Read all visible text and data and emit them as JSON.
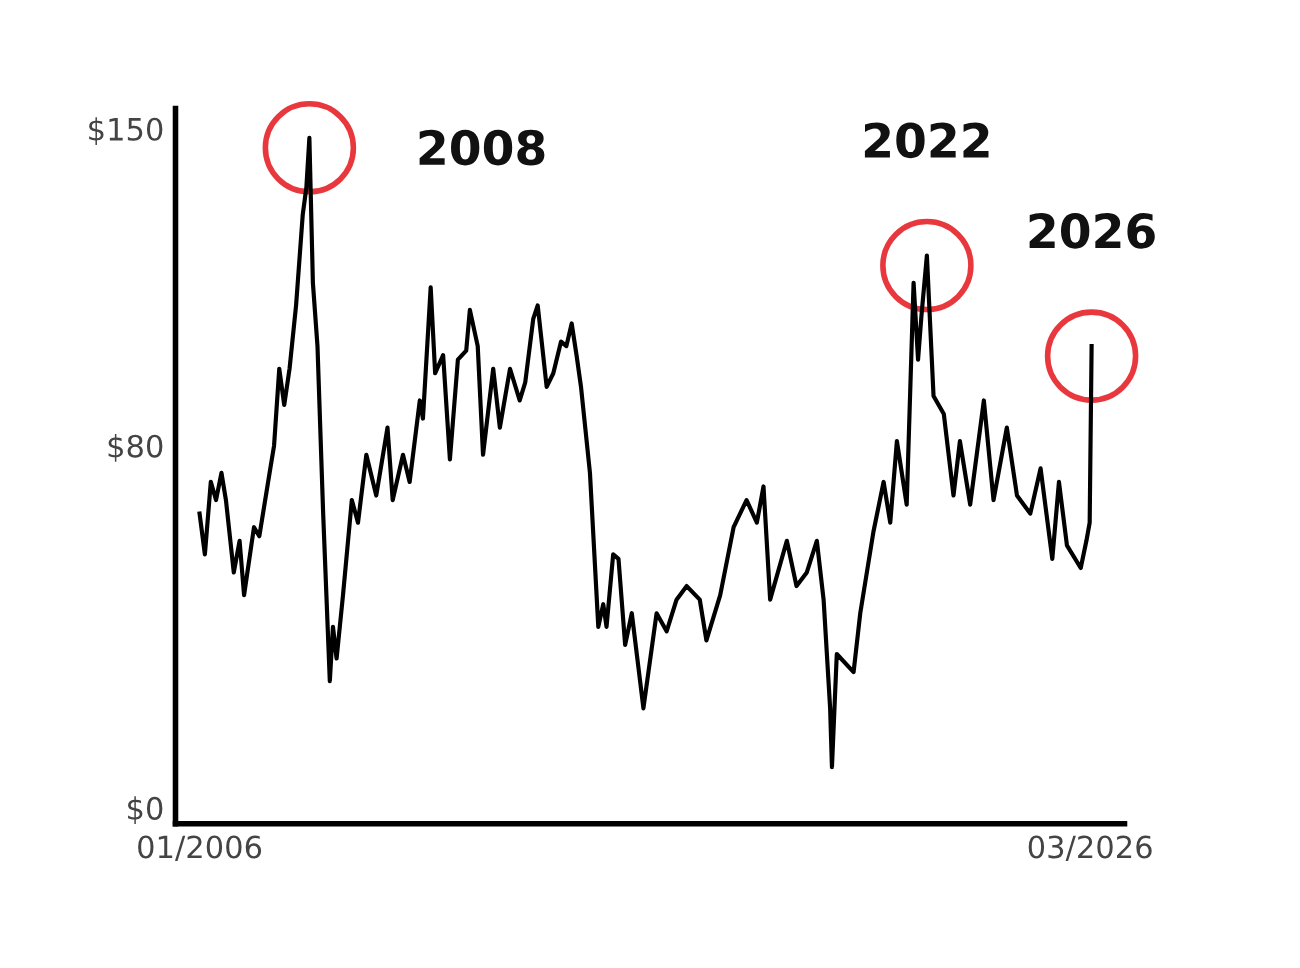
{
  "chart_data": {
    "type": "line",
    "x": [
      "2006-01-01",
      "2006-02-14",
      "2006-04-04",
      "2006-05-17",
      "2006-07-01",
      "2006-08-07",
      "2006-10-11",
      "2006-11-28",
      "2007-01-04",
      "2007-03-27",
      "2007-05-10",
      "2007-08-03",
      "2007-09-09",
      "2007-10-22",
      "2007-12-02",
      "2008-01-15",
      "2008-03-09",
      "2008-05-03",
      "2008-06-02",
      "2008-06-27",
      "2008-07-26",
      "2008-09-02",
      "2008-10-19",
      "2008-12-13",
      "2009-01-08",
      "2009-02-07",
      "2009-04-01",
      "2009-06-13",
      "2009-08-03",
      "2009-10-11",
      "2010-01-01",
      "2010-04-04",
      "2010-05-17",
      "2010-08-10",
      "2010-10-04",
      "2010-12-27",
      "2011-01-22",
      "2011-03-27",
      "2011-05-03",
      "2011-07-08",
      "2011-09-02",
      "2011-11-07",
      "2012-01-15",
      "2012-02-14",
      "2012-04-19",
      "2012-06-02",
      "2012-08-25",
      "2012-10-19",
      "2013-01-11",
      "2013-04-01",
      "2013-05-17",
      "2013-07-22",
      "2013-08-28",
      "2013-11-10",
      "2014-01-04",
      "2014-03-09",
      "2014-04-22",
      "2014-06-05",
      "2014-07-15",
      "2014-08-21",
      "2014-11-03",
      "2015-01-11",
      "2015-02-21",
      "2015-03-20",
      "2015-05-14",
      "2015-06-27",
      "2015-08-21",
      "2015-10-15",
      "2016-01-19",
      "2016-05-07",
      "2016-07-29",
      "2016-10-19",
      "2017-01-11",
      "2017-04-29",
      "2017-06-23",
      "2017-10-15",
      "2018-02-03",
      "2018-05-21",
      "2018-08-14",
      "2018-10-08",
      "2018-12-02",
      "2019-04-19",
      "2019-07-08",
      "2019-10-01",
      "2019-12-23",
      "2020-02-17",
      "2020-04-11",
      "2020-04-26",
      "2020-06-05",
      "2020-10-22",
      "2020-12-16",
      "2021-04-04",
      "2021-06-27",
      "2021-08-21",
      "2021-10-15",
      "2022-01-04",
      "2022-03-02",
      "2022-04-08",
      "2022-05-07",
      "2022-06-20",
      "2022-08-14",
      "2022-11-07",
      "2023-01-26",
      "2023-03-20",
      "2023-06-13",
      "2023-10-04",
      "2023-12-23",
      "2024-04-11",
      "2024-07-04",
      "2024-10-22",
      "2025-01-15",
      "2025-04-22",
      "2025-06-16",
      "2025-08-21",
      "2025-12-13",
      "2026-01-29",
      "2026-02-25",
      "2026-03-13"
    ],
    "series": [
      {
        "color": "#000000",
        "values": [
          65,
          56,
          72,
          68,
          74,
          68,
          52,
          59,
          47,
          62,
          60,
          74,
          80,
          97,
          89,
          97,
          111,
          131,
          137,
          148,
          116,
          102,
          65,
          28,
          40,
          33,
          47,
          68,
          63,
          78,
          69,
          84,
          68,
          78,
          72,
          90,
          86,
          115,
          96,
          100,
          77,
          99,
          101,
          110,
          102,
          78,
          97,
          84,
          97,
          90,
          94,
          108,
          111,
          93,
          96,
          103,
          102,
          107,
          100,
          93,
          74,
          40,
          45,
          40,
          56,
          55,
          36,
          43,
          22,
          43,
          39,
          46,
          49,
          46,
          37,
          47,
          62,
          68,
          63,
          71,
          46,
          59,
          49,
          52,
          59,
          46,
          22,
          9,
          34,
          30,
          43,
          61,
          72,
          63,
          81,
          67,
          116,
          99,
          109,
          122,
          91,
          87,
          69,
          81,
          67,
          90,
          68,
          84,
          69,
          65,
          75,
          55,
          72,
          58,
          53,
          59,
          63,
          102
        ]
      }
    ],
    "xlim": [
      "2005-06-16",
      "2026-12-10"
    ],
    "xticks": [
      {
        "value": "2006-01",
        "label": "01/2006"
      },
      {
        "value": "2026-03",
        "label": "03/2026"
      }
    ],
    "ylim": [
      -3.5,
      154.5
    ],
    "yticks": [
      {
        "value": 0,
        "label": "$0"
      },
      {
        "value": 80,
        "label": "$80"
      },
      {
        "value": 150,
        "label": "$150"
      }
    ],
    "grid": false,
    "annotations": [
      {
        "text": "2008",
        "x": "2008-06-27",
        "y": 148
      },
      {
        "text": "2022",
        "x": "2022-06-20",
        "y": 122
      },
      {
        "text": "2026",
        "x": "2026-03-13",
        "y": 102
      }
    ]
  }
}
